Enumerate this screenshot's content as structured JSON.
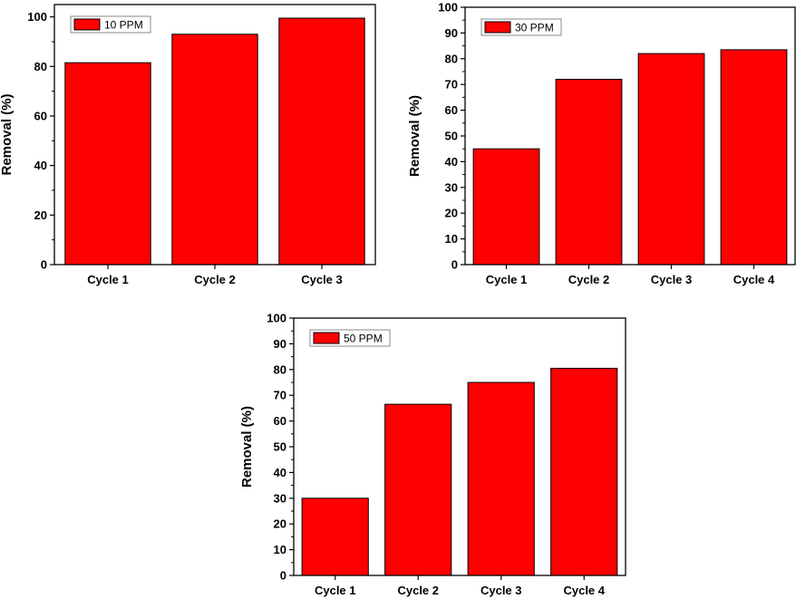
{
  "chart_data": [
    {
      "type": "bar",
      "categories": [
        "Cycle 1",
        "Cycle 2",
        "Cycle 3"
      ],
      "series": [
        {
          "name": "10 PPM",
          "values": [
            81.5,
            93,
            99.5
          ],
          "color": "#ff0000"
        }
      ],
      "ylabel": "Removal (%)",
      "ylim": [
        0,
        105
      ],
      "yticks": [
        0,
        20,
        40,
        60,
        80,
        100
      ],
      "grid": false,
      "legend": "top-left"
    },
    {
      "type": "bar",
      "categories": [
        "Cycle 1",
        "Cycle 2",
        "Cycle 3",
        "Cycle 4"
      ],
      "series": [
        {
          "name": "30 PPM",
          "values": [
            45,
            72,
            82,
            83.5
          ],
          "color": "#ff0000"
        }
      ],
      "ylabel": "Removal (%)",
      "ylim": [
        0,
        100
      ],
      "yticks": [
        0,
        10,
        20,
        30,
        40,
        50,
        60,
        70,
        80,
        90,
        100
      ],
      "grid": false,
      "legend": "top-left"
    },
    {
      "type": "bar",
      "categories": [
        "Cycle 1",
        "Cycle 2",
        "Cycle 3",
        "Cycle 4"
      ],
      "series": [
        {
          "name": "50 PPM",
          "values": [
            30,
            66.5,
            75,
            80.5
          ],
          "color": "#ff0000"
        }
      ],
      "ylabel": "Removal (%)",
      "ylim": [
        0,
        100
      ],
      "yticks": [
        0,
        10,
        20,
        30,
        40,
        50,
        60,
        70,
        80,
        90,
        100
      ],
      "grid": false,
      "legend": "top-left"
    }
  ]
}
